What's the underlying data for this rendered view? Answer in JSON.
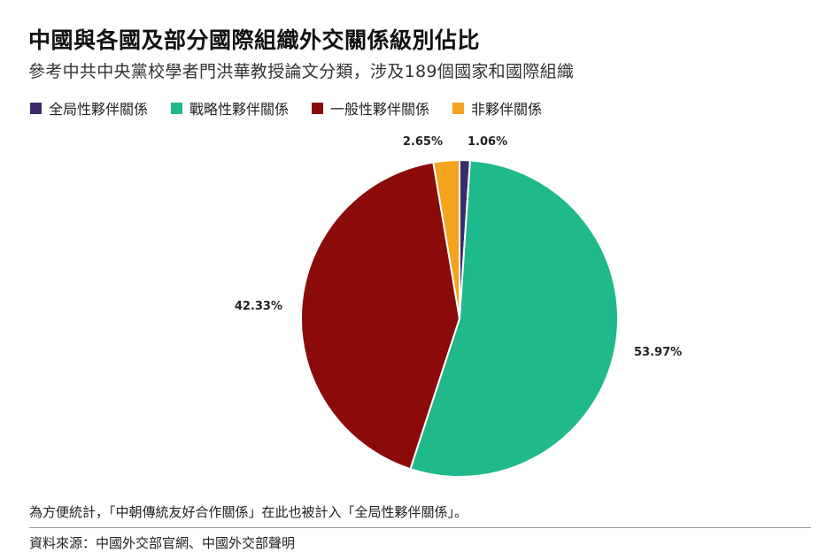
{
  "chart_data": {
    "type": "pie",
    "title": "中國與各國及部分國際組織外交關係級別佔比",
    "subtitle": "參考中共中央黨校學者門洪華教授論文分類，涉及189個國家和國際組織",
    "slices": [
      {
        "name": "全局性夥伴關係",
        "value": 1.06,
        "label": "1.06%",
        "color": "#3d2a6b"
      },
      {
        "name": "戰略性夥伴關係",
        "value": 53.97,
        "label": "53.97%",
        "color": "#1fb98b"
      },
      {
        "name": "一般性夥伴關係",
        "value": 42.33,
        "label": "42.33%",
        "color": "#8b0a0a"
      },
      {
        "name": "非夥伴關係",
        "value": 2.65,
        "label": "2.65%",
        "color": "#f5a21f"
      }
    ],
    "start_angle_deg": 0,
    "direction": "clockwise",
    "legend_position": "top-left"
  },
  "footer": {
    "note": "為方便統計，「中朝傳統友好合作關係」在此也被計入「全局性夥伴關係」。",
    "source": "資料來源：中國外交部官網、中國外交部聲明"
  }
}
